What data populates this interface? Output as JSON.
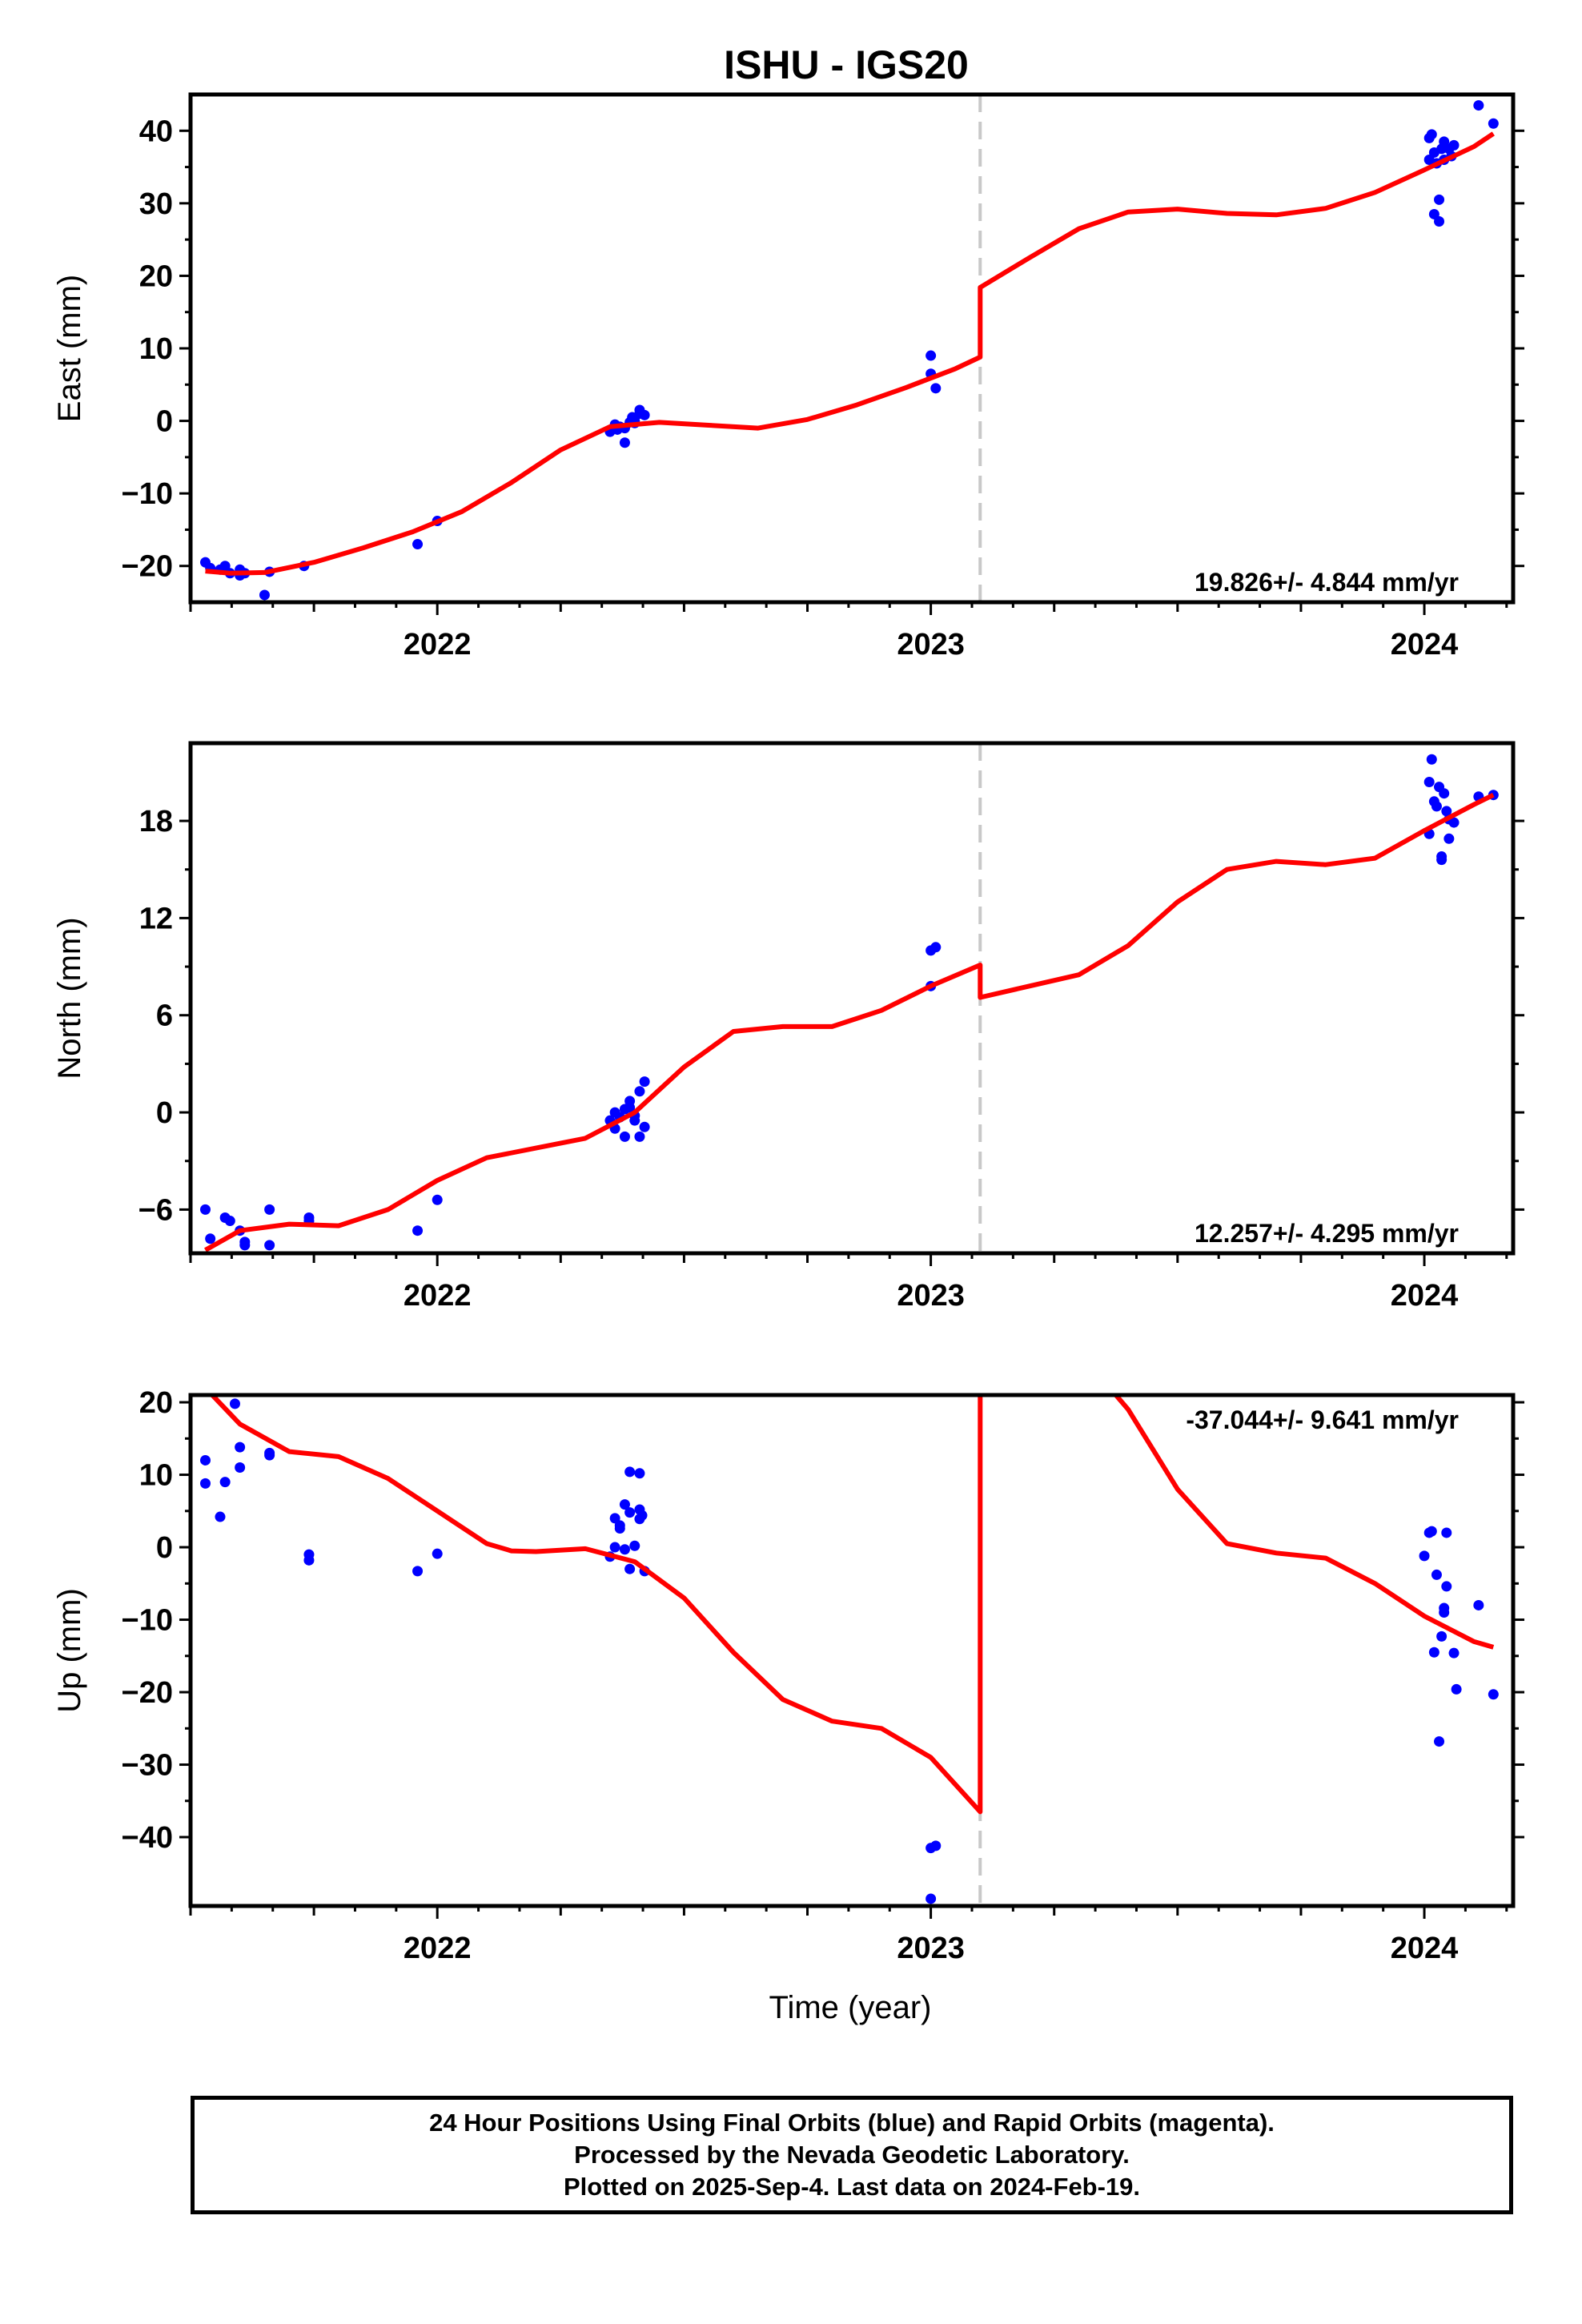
{
  "title": "ISHU - IGS20",
  "footer": {
    "line1": "24 Hour Positions Using Final Orbits (blue) and Rapid Orbits (magenta).",
    "line2": "Processed by the Nevada Geodetic Laboratory.",
    "line3": "Plotted on 2025-Sep-4. Last data on 2024-Feb-19."
  },
  "colors": {
    "final_orbit_points": "#0000ff",
    "model_fit": "#ff0000",
    "step_marker": "#c8c8c8"
  },
  "chart_data": [
    {
      "type": "scatter",
      "panel": "east",
      "ylabel": "East (mm)",
      "xlabel": "",
      "xlim": [
        2021.5,
        2024.18
      ],
      "ylim": [
        -25,
        45
      ],
      "yticks": [
        -20,
        -10,
        0,
        10,
        20,
        30,
        40
      ],
      "xticks": [
        2022,
        2023,
        2024
      ],
      "grid": false,
      "step_epoch": 2023.1,
      "rate_text": "19.826+/- 4.844 mm/yr",
      "rate_position": "bottom-right",
      "points": [
        [
          2021.53,
          -19.5
        ],
        [
          2021.54,
          -20.3
        ],
        [
          2021.56,
          -20.5
        ],
        [
          2021.57,
          -20.0
        ],
        [
          2021.58,
          -21.0
        ],
        [
          2021.6,
          -20.5
        ],
        [
          2021.6,
          -21.3
        ],
        [
          2021.61,
          -21.0
        ],
        [
          2021.65,
          -24.0
        ],
        [
          2021.66,
          -20.8
        ],
        [
          2021.73,
          -20.0
        ],
        [
          2021.96,
          -17.0
        ],
        [
          2022.0,
          -13.8
        ],
        [
          2022.35,
          -1.5
        ],
        [
          2022.36,
          -0.5
        ],
        [
          2022.365,
          -1.2
        ],
        [
          2022.37,
          -0.8
        ],
        [
          2022.38,
          -1.0
        ],
        [
          2022.38,
          -3.0
        ],
        [
          2022.39,
          -0.2
        ],
        [
          2022.395,
          0.5
        ],
        [
          2022.4,
          0.0
        ],
        [
          2022.4,
          -0.3
        ],
        [
          2022.41,
          1.0
        ],
        [
          2022.41,
          1.5
        ],
        [
          2022.42,
          0.8
        ],
        [
          2023.0,
          9.0
        ],
        [
          2023.0,
          6.5
        ],
        [
          2023.01,
          4.5
        ],
        [
          2024.01,
          36.0
        ],
        [
          2024.01,
          39.0
        ],
        [
          2024.015,
          39.5
        ],
        [
          2024.02,
          37.0
        ],
        [
          2024.02,
          28.5
        ],
        [
          2024.025,
          35.5
        ],
        [
          2024.03,
          27.5
        ],
        [
          2024.03,
          30.5
        ],
        [
          2024.035,
          37.5
        ],
        [
          2024.04,
          36.0
        ],
        [
          2024.04,
          38.5
        ],
        [
          2024.05,
          37.5
        ],
        [
          2024.055,
          36.5
        ],
        [
          2024.06,
          38.0
        ],
        [
          2024.11,
          43.5
        ],
        [
          2024.14,
          41.0
        ]
      ],
      "model": [
        [
          2021.53,
          -20.7
        ],
        [
          2021.58,
          -21.0
        ],
        [
          2021.65,
          -20.9
        ],
        [
          2021.75,
          -19.5
        ],
        [
          2021.85,
          -17.5
        ],
        [
          2021.95,
          -15.3
        ],
        [
          2022.05,
          -12.5
        ],
        [
          2022.15,
          -8.5
        ],
        [
          2022.25,
          -4.0
        ],
        [
          2022.35,
          -0.8
        ],
        [
          2022.45,
          -0.2
        ],
        [
          2022.55,
          -0.6
        ],
        [
          2022.65,
          -1.0
        ],
        [
          2022.75,
          0.2
        ],
        [
          2022.85,
          2.2
        ],
        [
          2022.95,
          4.6
        ],
        [
          2023.05,
          7.2
        ],
        [
          2023.1,
          8.8
        ],
        [
          2023.1,
          18.4
        ],
        [
          2023.2,
          22.5
        ],
        [
          2023.3,
          26.5
        ],
        [
          2023.4,
          28.8
        ],
        [
          2023.5,
          29.2
        ],
        [
          2023.6,
          28.6
        ],
        [
          2023.7,
          28.4
        ],
        [
          2023.8,
          29.3
        ],
        [
          2023.9,
          31.5
        ],
        [
          2024.0,
          34.6
        ],
        [
          2024.1,
          37.8
        ],
        [
          2024.14,
          39.6
        ]
      ]
    },
    {
      "type": "scatter",
      "panel": "north",
      "ylabel": "North (mm)",
      "xlabel": "",
      "xlim": [
        2021.5,
        2024.18
      ],
      "ylim": [
        -8.7,
        22.8
      ],
      "yticks": [
        -6,
        0,
        6,
        12,
        18
      ],
      "xticks": [
        2022,
        2023,
        2024
      ],
      "grid": false,
      "step_epoch": 2023.1,
      "rate_text": "12.257+/- 4.295 mm/yr",
      "rate_position": "bottom-right",
      "points": [
        [
          2021.53,
          -6.0
        ],
        [
          2021.54,
          -7.8
        ],
        [
          2021.57,
          -6.5
        ],
        [
          2021.58,
          -6.7
        ],
        [
          2021.6,
          -7.3
        ],
        [
          2021.61,
          -8.0
        ],
        [
          2021.61,
          -8.2
        ],
        [
          2021.66,
          -6.0
        ],
        [
          2021.66,
          -8.2
        ],
        [
          2021.74,
          -6.7
        ],
        [
          2021.74,
          -6.5
        ],
        [
          2021.96,
          -7.3
        ],
        [
          2022.0,
          -5.4
        ],
        [
          2022.35,
          -0.5
        ],
        [
          2022.36,
          -1.0
        ],
        [
          2022.36,
          0.0
        ],
        [
          2022.37,
          -0.3
        ],
        [
          2022.38,
          0.2
        ],
        [
          2022.38,
          -1.5
        ],
        [
          2022.39,
          0.7
        ],
        [
          2022.39,
          0.3
        ],
        [
          2022.4,
          -0.5
        ],
        [
          2022.4,
          -0.2
        ],
        [
          2022.41,
          1.3
        ],
        [
          2022.42,
          1.9
        ],
        [
          2022.42,
          -0.9
        ],
        [
          2022.41,
          -1.5
        ],
        [
          2023.0,
          10.0
        ],
        [
          2023.01,
          10.2
        ],
        [
          2023.0,
          7.8
        ],
        [
          2024.01,
          20.4
        ],
        [
          2024.01,
          17.2
        ],
        [
          2024.015,
          21.8
        ],
        [
          2024.02,
          19.2
        ],
        [
          2024.025,
          18.9
        ],
        [
          2024.03,
          20.1
        ],
        [
          2024.035,
          15.8
        ],
        [
          2024.035,
          15.6
        ],
        [
          2024.04,
          19.7
        ],
        [
          2024.045,
          18.6
        ],
        [
          2024.05,
          16.9
        ],
        [
          2024.05,
          18.1
        ],
        [
          2024.06,
          17.9
        ],
        [
          2024.11,
          19.5
        ],
        [
          2024.14,
          19.6
        ]
      ],
      "model": [
        [
          2021.53,
          -8.5
        ],
        [
          2021.6,
          -7.3
        ],
        [
          2021.7,
          -6.9
        ],
        [
          2021.8,
          -7.0
        ],
        [
          2021.9,
          -6.0
        ],
        [
          2022.0,
          -4.2
        ],
        [
          2022.1,
          -2.8
        ],
        [
          2022.2,
          -2.2
        ],
        [
          2022.3,
          -1.6
        ],
        [
          2022.4,
          0.0
        ],
        [
          2022.5,
          2.8
        ],
        [
          2022.6,
          5.0
        ],
        [
          2022.7,
          5.3
        ],
        [
          2022.8,
          5.3
        ],
        [
          2022.9,
          6.3
        ],
        [
          2023.0,
          7.8
        ],
        [
          2023.1,
          9.1
        ],
        [
          2023.1,
          7.1
        ],
        [
          2023.2,
          7.8
        ],
        [
          2023.3,
          8.5
        ],
        [
          2023.4,
          10.3
        ],
        [
          2023.5,
          13.0
        ],
        [
          2023.6,
          15.0
        ],
        [
          2023.7,
          15.5
        ],
        [
          2023.8,
          15.3
        ],
        [
          2023.9,
          15.7
        ],
        [
          2024.0,
          17.4
        ],
        [
          2024.1,
          19.0
        ],
        [
          2024.14,
          19.6
        ]
      ]
    },
    {
      "type": "scatter",
      "panel": "up",
      "ylabel": "Up (mm)",
      "xlabel": "Time (year)",
      "xlim": [
        2021.5,
        2024.18
      ],
      "ylim": [
        -49.5,
        21
      ],
      "yticks": [
        -40,
        -30,
        -20,
        -10,
        0,
        10,
        20
      ],
      "xticks": [
        2022,
        2023,
        2024
      ],
      "grid": false,
      "step_epoch": 2023.1,
      "rate_text": "-37.044+/- 9.641 mm/yr",
      "rate_position": "top-right",
      "points": [
        [
          2021.53,
          12.0
        ],
        [
          2021.53,
          8.8
        ],
        [
          2021.56,
          4.2
        ],
        [
          2021.57,
          9.0
        ],
        [
          2021.59,
          19.8
        ],
        [
          2021.6,
          11.0
        ],
        [
          2021.6,
          13.8
        ],
        [
          2021.66,
          13.0
        ],
        [
          2021.66,
          12.7
        ],
        [
          2021.74,
          -1.0
        ],
        [
          2021.74,
          -1.8
        ],
        [
          2021.96,
          -3.3
        ],
        [
          2022.0,
          -0.9
        ],
        [
          2022.35,
          -1.3
        ],
        [
          2022.36,
          4.0
        ],
        [
          2022.36,
          0.0
        ],
        [
          2022.37,
          3.0
        ],
        [
          2022.37,
          2.6
        ],
        [
          2022.38,
          5.9
        ],
        [
          2022.38,
          -0.3
        ],
        [
          2022.39,
          -3.0
        ],
        [
          2022.39,
          4.8
        ],
        [
          2022.39,
          10.4
        ],
        [
          2022.4,
          0.2
        ],
        [
          2022.41,
          5.2
        ],
        [
          2022.41,
          10.2
        ],
        [
          2022.41,
          3.9
        ],
        [
          2022.415,
          4.4
        ],
        [
          2022.42,
          -3.3
        ],
        [
          2023.0,
          -41.5
        ],
        [
          2023.01,
          -41.2
        ],
        [
          2023.0,
          -48.5
        ],
        [
          2024.0,
          -1.2
        ],
        [
          2024.01,
          2.0
        ],
        [
          2024.015,
          2.2
        ],
        [
          2024.02,
          -14.5
        ],
        [
          2024.025,
          -3.8
        ],
        [
          2024.03,
          -26.8
        ],
        [
          2024.035,
          -12.3
        ],
        [
          2024.04,
          -9.0
        ],
        [
          2024.04,
          -8.4
        ],
        [
          2024.045,
          2.0
        ],
        [
          2024.045,
          -5.4
        ],
        [
          2024.06,
          -14.6
        ],
        [
          2024.065,
          -19.6
        ],
        [
          2024.11,
          -8.0
        ],
        [
          2024.14,
          -20.3
        ]
      ],
      "model": [
        [
          2021.53,
          22.0
        ],
        [
          2021.6,
          17.0
        ],
        [
          2021.7,
          13.2
        ],
        [
          2021.8,
          12.5
        ],
        [
          2021.9,
          9.5
        ],
        [
          2022.0,
          5.0
        ],
        [
          2022.1,
          0.5
        ],
        [
          2022.15,
          -0.5
        ],
        [
          2022.2,
          -0.6
        ],
        [
          2022.3,
          -0.2
        ],
        [
          2022.4,
          -2.0
        ],
        [
          2022.5,
          -7.0
        ],
        [
          2022.6,
          -14.5
        ],
        [
          2022.7,
          -21.0
        ],
        [
          2022.8,
          -24.0
        ],
        [
          2022.9,
          -25.0
        ],
        [
          2023.0,
          -29.0
        ],
        [
          2023.1,
          -36.5
        ],
        [
          2023.1,
          21.5
        ],
        [
          2023.2,
          28.5
        ],
        [
          2023.3,
          27.0
        ],
        [
          2023.4,
          19.0
        ],
        [
          2023.5,
          8.0
        ],
        [
          2023.6,
          0.5
        ],
        [
          2023.7,
          -0.8
        ],
        [
          2023.8,
          -1.5
        ],
        [
          2023.9,
          -5.0
        ],
        [
          2024.0,
          -9.5
        ],
        [
          2024.1,
          -13.0
        ],
        [
          2024.14,
          -13.8
        ]
      ]
    }
  ]
}
